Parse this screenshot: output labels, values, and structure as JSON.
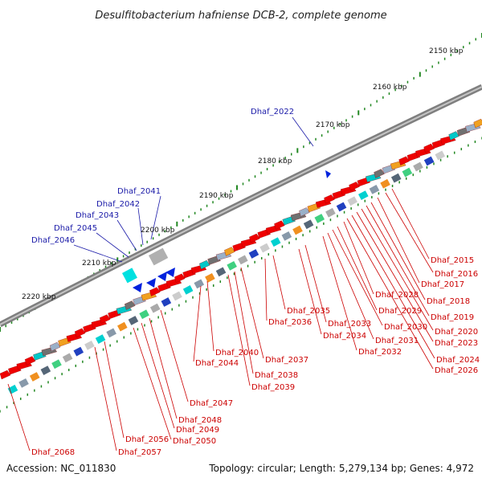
{
  "title": "Desulfitobacterium hafniense DCB-2, complete genome",
  "footer": {
    "accession": "Accession: NC_011830",
    "summary": "Topology: circular; Length: 5,279,134 bp; Genes: 4,972"
  },
  "colors": {
    "backbone": "#808080",
    "forward_gene": "#ee0000",
    "top_label": "#1a1aa8",
    "bottom_label": "#cc0000",
    "ticks": "#228822"
  },
  "scale_labels": [
    "2150 kbp",
    "2160 kbp",
    "2170 kbp",
    "2180 kbp",
    "2190 kbp",
    "2200 kbp",
    "2210 kbp",
    "2220 kbp"
  ],
  "top_labels": [
    "Dhaf_2022",
    "Dhaf_2041",
    "Dhaf_2042",
    "Dhaf_2043",
    "Dhaf_2045",
    "Dhaf_2046"
  ],
  "bottom_labels": [
    "Dhaf_2015",
    "Dhaf_2016",
    "Dhaf_2017",
    "Dhaf_2018",
    "Dhaf_2019",
    "Dhaf_2020",
    "Dhaf_2023",
    "Dhaf_2024",
    "Dhaf_2026",
    "Dhaf_2028",
    "Dhaf_2029",
    "Dhaf_2030",
    "Dhaf_2031",
    "Dhaf_2032",
    "Dhaf_2033",
    "Dhaf_2034",
    "Dhaf_2035",
    "Dhaf_2036",
    "Dhaf_2037",
    "Dhaf_2038",
    "Dhaf_2039",
    "Dhaf_2040",
    "Dhaf_2044",
    "Dhaf_2047",
    "Dhaf_2048",
    "Dhaf_2049",
    "Dhaf_2050",
    "Dhaf_2056",
    "Dhaf_2057",
    "Dhaf_2068"
  ]
}
